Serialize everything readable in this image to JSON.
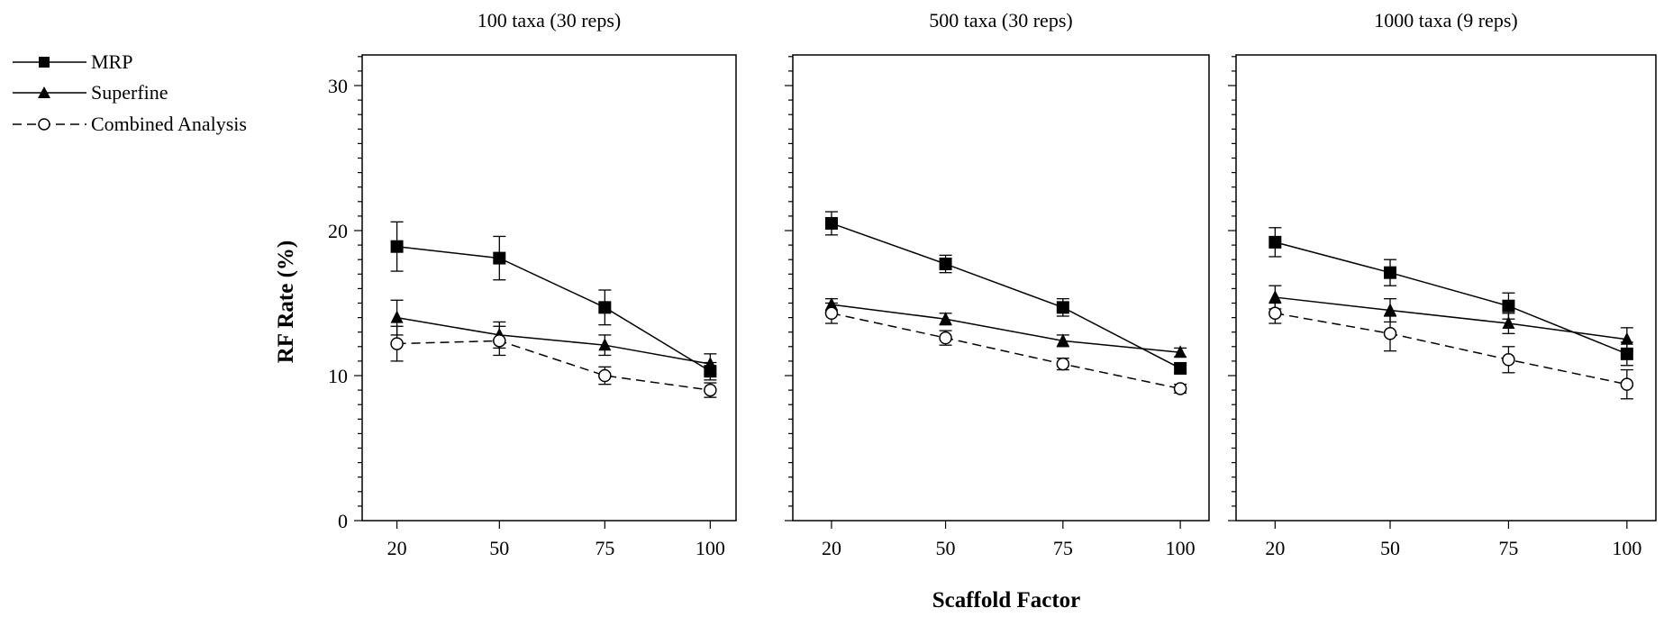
{
  "figure": {
    "ylabel": "RF Rate (%)",
    "xlabel": "Scaffold Factor"
  },
  "legend": {
    "placement": "top-left, outside plots",
    "items": [
      {
        "label": "MRP",
        "marker": "filled-square",
        "line": "solid"
      },
      {
        "label": "Superfine",
        "marker": "filled-triangle",
        "line": "solid"
      },
      {
        "label": "Combined Analysis",
        "marker": "open-circle",
        "line": "dashed"
      }
    ]
  },
  "chart_data": [
    {
      "type": "line",
      "title": "100 taxa (30 reps)",
      "xlabel": "Scaffold Factor",
      "ylabel": "RF Rate (%)",
      "categories": [
        "20",
        "50",
        "75",
        "100"
      ],
      "ylim": [
        0,
        32
      ],
      "yticks": [
        0,
        10,
        20,
        30
      ],
      "series": [
        {
          "name": "MRP",
          "values": [
            18.9,
            18.1,
            14.7,
            10.3
          ],
          "errors": [
            1.7,
            1.5,
            1.2,
            0.6
          ]
        },
        {
          "name": "Superfine",
          "values": [
            14.0,
            12.8,
            12.1,
            10.8
          ],
          "errors": [
            1.2,
            0.9,
            0.7,
            0.7
          ]
        },
        {
          "name": "Combined Analysis",
          "values": [
            12.2,
            12.4,
            10.0,
            9.0
          ],
          "errors": [
            1.2,
            1.0,
            0.6,
            0.5
          ]
        }
      ]
    },
    {
      "type": "line",
      "title": "500 taxa (30 reps)",
      "xlabel": "Scaffold Factor",
      "ylabel": "RF Rate (%)",
      "categories": [
        "20",
        "50",
        "75",
        "100"
      ],
      "ylim": [
        0,
        32
      ],
      "yticks": [
        0,
        10,
        20,
        30
      ],
      "series": [
        {
          "name": "MRP",
          "values": [
            20.5,
            17.7,
            14.7,
            10.5
          ],
          "errors": [
            0.8,
            0.6,
            0.6,
            0.3
          ]
        },
        {
          "name": "Superfine",
          "values": [
            14.9,
            13.9,
            12.4,
            11.6
          ],
          "errors": [
            0.4,
            0.4,
            0.4,
            0.3
          ]
        },
        {
          "name": "Combined Analysis",
          "values": [
            14.3,
            12.6,
            10.8,
            9.1
          ],
          "errors": [
            0.7,
            0.5,
            0.4,
            0.3
          ]
        }
      ]
    },
    {
      "type": "line",
      "title": "1000 taxa (9 reps)",
      "xlabel": "Scaffold Factor",
      "ylabel": "RF Rate (%)",
      "categories": [
        "20",
        "50",
        "75",
        "100"
      ],
      "ylim": [
        0,
        32
      ],
      "yticks": [
        0,
        10,
        20,
        30
      ],
      "series": [
        {
          "name": "MRP",
          "values": [
            19.2,
            17.1,
            14.8,
            11.5
          ],
          "errors": [
            1.0,
            0.9,
            0.9,
            0.8
          ]
        },
        {
          "name": "Superfine",
          "values": [
            15.4,
            14.5,
            13.6,
            12.5
          ],
          "errors": [
            0.8,
            0.8,
            0.7,
            0.8
          ]
        },
        {
          "name": "Combined Analysis",
          "values": [
            14.3,
            12.9,
            11.1,
            9.4
          ],
          "errors": [
            0.7,
            1.2,
            0.9,
            1.0
          ]
        }
      ]
    }
  ]
}
